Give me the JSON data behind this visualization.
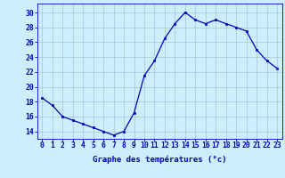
{
  "hours": [
    0,
    1,
    2,
    3,
    4,
    5,
    6,
    7,
    8,
    9,
    10,
    11,
    12,
    13,
    14,
    15,
    16,
    17,
    18,
    19,
    20,
    21,
    22,
    23
  ],
  "temperatures": [
    18.5,
    17.5,
    16.0,
    15.5,
    15.0,
    14.5,
    14.0,
    13.5,
    14.0,
    16.5,
    21.5,
    23.5,
    26.5,
    28.5,
    30.0,
    29.0,
    28.5,
    29.0,
    28.5,
    28.0,
    27.5,
    25.0,
    23.5,
    22.5
  ],
  "line_color": "#0000bb",
  "marker_color": "#0000bb",
  "bg_color": "#cceeff",
  "grid_color": "#99cccc",
  "xlabel": "Graphe des températures (°c)",
  "ylabel_ticks": [
    14,
    16,
    18,
    20,
    22,
    24,
    26,
    28,
    30
  ],
  "ylim": [
    13.0,
    31.2
  ],
  "xlim": [
    -0.5,
    23.5
  ],
  "tick_color": "#0000bb",
  "label_color": "#0000bb",
  "xlabel_fontsize": 6.5,
  "tick_fontsize": 5.8
}
